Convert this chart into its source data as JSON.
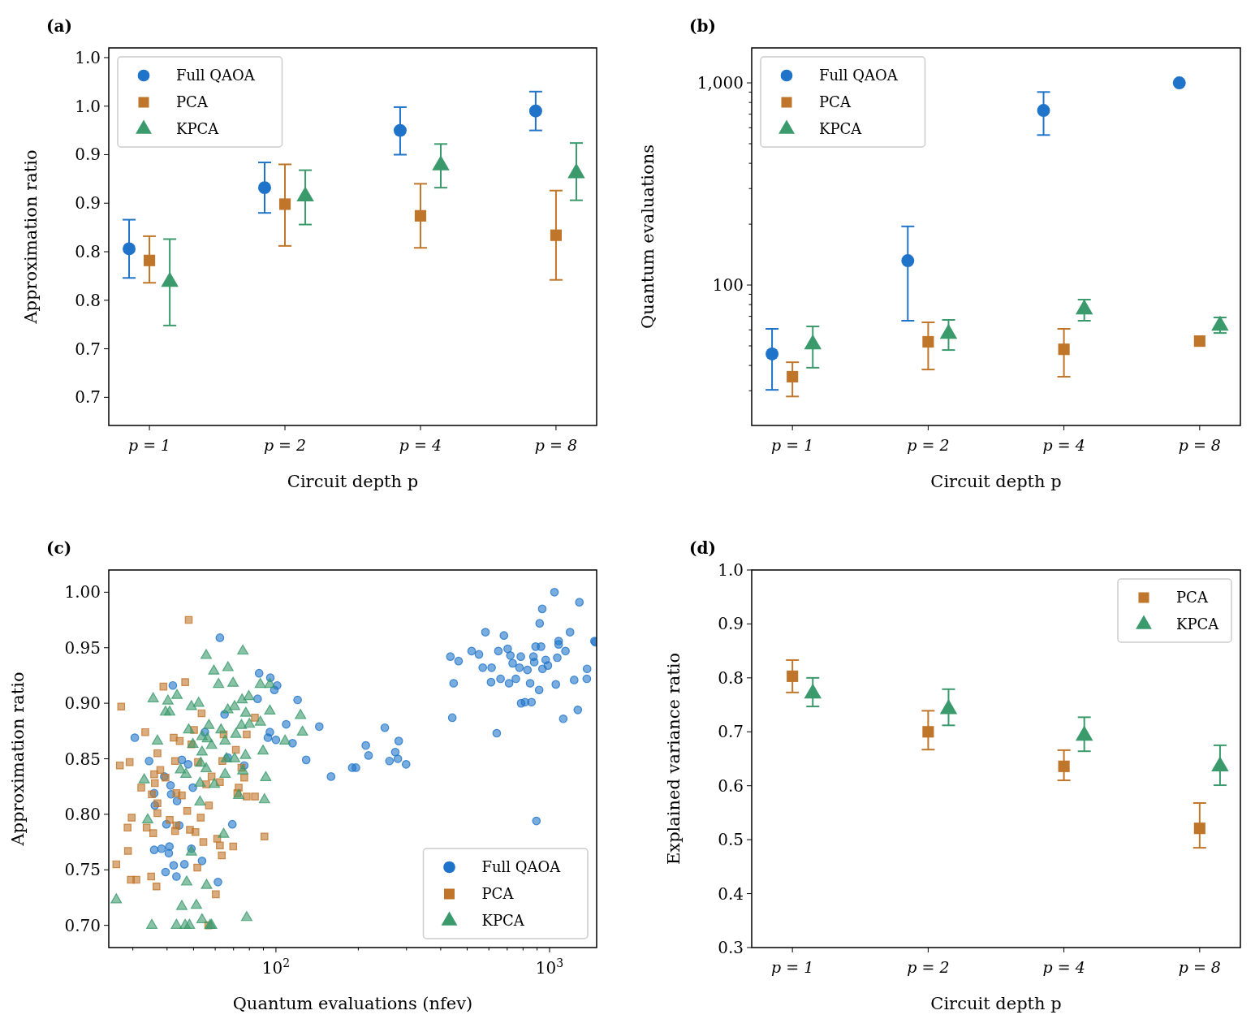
{
  "chart_data": [
    {
      "type": "scatter",
      "title": "(a)",
      "xlabel": "Circuit depth p",
      "ylabel": "Approximation ratio",
      "categories": [
        "p = 1",
        "p = 2",
        "p = 4",
        "p = 8"
      ],
      "ylim": [
        0.646,
        1.035
      ],
      "yticks": [
        {
          "value": 0.675,
          "label": "0.7"
        },
        {
          "value": 0.725,
          "label": "0.7"
        },
        {
          "value": 0.775,
          "label": "0.8"
        },
        {
          "value": 0.825,
          "label": "0.8"
        },
        {
          "value": 0.875,
          "label": "0.9"
        },
        {
          "value": 0.925,
          "label": "0.9"
        },
        {
          "value": 0.975,
          "label": "1.0"
        },
        {
          "value": 1.025,
          "label": "1.0"
        }
      ],
      "legend": "top left",
      "series": [
        {
          "name": "Full QAOA",
          "color": "#1f74c9",
          "marker": "circle",
          "values": [
            0.828,
            0.891,
            0.95,
            0.97
          ],
          "errors": [
            [
              0.798,
              0.858
            ],
            [
              0.865,
              0.917
            ],
            [
              0.925,
              0.974
            ],
            [
              0.95,
              0.99
            ]
          ]
        },
        {
          "name": "PCA",
          "color": "#c0762a",
          "marker": "square",
          "values": [
            0.816,
            0.874,
            0.862,
            0.842
          ],
          "errors": [
            [
              0.793,
              0.841
            ],
            [
              0.831,
              0.915
            ],
            [
              0.829,
              0.895
            ],
            [
              0.796,
              0.888
            ]
          ]
        },
        {
          "name": "KPCA",
          "color": "#3a9a6c",
          "marker": "triangle",
          "values": [
            0.794,
            0.882,
            0.914,
            0.906
          ],
          "errors": [
            [
              0.749,
              0.838
            ],
            [
              0.853,
              0.909
            ],
            [
              0.891,
              0.936
            ],
            [
              0.878,
              0.937
            ]
          ]
        }
      ]
    },
    {
      "type": "scatter",
      "title": "(b)",
      "xlabel": "Circuit depth p",
      "ylabel": "Quantum evaluations",
      "categories": [
        "p = 1",
        "p = 2",
        "p = 4",
        "p = 8"
      ],
      "log": "y",
      "ylim": [
        20.2,
        1489
      ],
      "yticks": [
        {
          "value": 30,
          "label": null
        },
        {
          "value": 40,
          "label": null
        },
        {
          "value": 50,
          "label": null
        },
        {
          "value": 60,
          "label": null
        },
        {
          "value": 70,
          "label": null
        },
        {
          "value": 80,
          "label": null
        },
        {
          "value": 90,
          "label": null
        },
        100,
        {
          "value": 200,
          "label": null
        },
        {
          "value": 300,
          "label": null
        },
        {
          "value": 400,
          "label": null
        },
        {
          "value": 500,
          "label": null
        },
        {
          "value": 600,
          "label": null
        },
        {
          "value": 700,
          "label": null
        },
        {
          "value": 800,
          "label": null
        },
        {
          "value": 900,
          "label": null
        },
        {
          "value": 1000,
          "label": "1,000"
        }
      ],
      "legend": "top left",
      "series": [
        {
          "name": "Full QAOA",
          "color": "#1f74c9",
          "marker": "circle",
          "values": [
            45.6,
            132,
            730,
            1000
          ],
          "errors": [
            [
              30.3,
              60.7
            ],
            [
              66.6,
              195
            ],
            [
              552,
              901
            ],
            null
          ]
        },
        {
          "name": "PCA",
          "color": "#c0762a",
          "marker": "square",
          "values": [
            35.2,
            52.4,
            48.1,
            52.8
          ],
          "errors": [
            [
              28.1,
              41.5
            ],
            [
              38.2,
              65.4
            ],
            [
              35.2,
              60.7
            ],
            null
          ]
        },
        {
          "name": "KPCA",
          "color": "#3a9a6c",
          "marker": "triangle",
          "values": [
            50.9,
            57.4,
            75.8,
            63
          ],
          "errors": [
            [
              39,
              62.4
            ],
            [
              47.7,
              67.2
            ],
            [
              66.6,
              84.7
            ],
            [
              57.9,
              69.1
            ]
          ]
        }
      ]
    },
    {
      "type": "scatter",
      "title": "(c)",
      "xlabel": "Quantum evaluations (nfev)",
      "ylabel": "Approximation ratio",
      "log": "x",
      "xlim": [
        24.5,
        1486
      ],
      "xticks": [
        {
          "value": 30,
          "label": null
        },
        {
          "value": 40,
          "label": null
        },
        {
          "value": 50,
          "label": null
        },
        {
          "value": 60,
          "label": null
        },
        {
          "value": 70,
          "label": null
        },
        {
          "value": 80,
          "label": null
        },
        {
          "value": 90,
          "label": null
        },
        {
          "value": 100,
          "label": "10$^{2}$"
        },
        {
          "value": 200,
          "label": null
        },
        {
          "value": 300,
          "label": null
        },
        {
          "value": 400,
          "label": null
        },
        {
          "value": 500,
          "label": null
        },
        {
          "value": 600,
          "label": null
        },
        {
          "value": 700,
          "label": null
        },
        {
          "value": 800,
          "label": null
        },
        {
          "value": 900,
          "label": null
        },
        {
          "value": 1000,
          "label": "10$^{3}$"
        }
      ],
      "ylim": [
        0.68,
        1.02
      ],
      "yticks": [
        {
          "value": 0.7,
          "label": "0.70"
        },
        0.75,
        {
          "value": 0.8,
          "label": "0.80"
        },
        0.85,
        {
          "value": 0.9,
          "label": "0.90"
        },
        0.95,
        {
          "value": 1.0,
          "label": "1.00"
        }
      ],
      "legend": "bottom right",
      "series": [
        {
          "name": "Full QAOA",
          "color": "#1f74c9",
          "marker": "circle",
          "x": [
            1042,
            1285,
            940,
            920,
            583,
            1188,
            681,
            1459,
            1079,
            1079,
            434,
            465,
            519,
            552,
            650,
            703,
            719,
            785,
            889,
            931,
            1143,
            873,
            879,
            968,
            1067,
            570,
            614,
            733,
            776,
            830,
            942,
            986,
            1371,
            1368,
            446,
            611,
            662,
            711,
            753,
            849,
            916,
            1054,
            1230,
            787,
            813,
            859,
            1122,
            1268,
            441,
            641,
            250,
            213,
            218,
            196,
            281,
            273,
            260,
            279,
            299,
            895,
            1470,
            62.4,
            86.8,
            95.4,
            101,
            98.7,
            85.7,
            120,
            42,
            64.9,
            109,
            144,
            95,
            93.5,
            100,
            115,
            129,
            159,
            190,
            30.5,
            34.4,
            55,
            45.3,
            47.8,
            66.7,
            76.6,
            39.1,
            41.2,
            49.7,
            41.4,
            43.5,
            36.1,
            35.9,
            39.8,
            44.3,
            69.3,
            35.9,
            38.2,
            40.8,
            40.6,
            49.1,
            53.7,
            39.5,
            42.3,
            43.3,
            46.3,
            61.4
          ],
          "values": [
            1.0,
            0.991,
            0.985,
            0.972,
            0.964,
            0.964,
            0.961,
            0.956,
            0.956,
            0.953,
            0.942,
            0.938,
            0.947,
            0.944,
            0.947,
            0.949,
            0.943,
            0.942,
            0.951,
            0.951,
            0.947,
            0.942,
            0.937,
            0.939,
            0.941,
            0.932,
            0.932,
            0.936,
            0.932,
            0.93,
            0.931,
            0.934,
            0.931,
            0.922,
            0.918,
            0.919,
            0.922,
            0.918,
            0.922,
            0.918,
            0.912,
            0.917,
            0.921,
            0.9,
            0.901,
            0.901,
            0.886,
            0.894,
            0.887,
            0.873,
            0.878,
            0.862,
            0.853,
            0.842,
            0.866,
            0.856,
            0.848,
            0.85,
            0.845,
            0.794,
            0.955,
            0.959,
            0.927,
            0.923,
            0.916,
            0.912,
            0.904,
            0.903,
            0.916,
            0.89,
            0.881,
            0.879,
            0.874,
            0.869,
            0.867,
            0.864,
            0.849,
            0.834,
            0.842,
            0.869,
            0.848,
            0.874,
            0.849,
            0.845,
            0.851,
            0.844,
            0.834,
            0.826,
            0.824,
            0.818,
            0.812,
            0.808,
            0.819,
            0.791,
            0.79,
            0.791,
            0.768,
            0.769,
            0.771,
            0.765,
            0.769,
            0.758,
            0.748,
            0.754,
            0.744,
            0.755,
            0.739
          ]
        },
        {
          "name": "PCA",
          "color": "#c0762a",
          "marker": "square",
          "x": [
            48,
            38.8,
            46.6,
            27.2,
            53.5,
            83.8,
            33.3,
            42.3,
            44.5,
            49.1,
            50.2,
            64.4,
            78.2,
            36.9,
            26.9,
            29.2,
            42.8,
            51.9,
            63.7,
            71.4,
            74.8,
            35.9,
            37.8,
            39.5,
            32.2,
            36.1,
            35.2,
            43.3,
            45.3,
            58.2,
            62.4,
            55.6,
            73.1,
            76.6,
            72.3,
            78.2,
            83.8,
            36.9,
            47.4,
            56.9,
            36.9,
            29.7,
            53.1,
            28.7,
            33.7,
            40.9,
            43.3,
            48.5,
            35.6,
            42.8,
            50.8,
            54.3,
            61,
            62.4,
            69.8,
            63.4,
            90.8,
            28.8,
            26.1,
            29.5,
            30.9,
            35,
            36.6,
            51.6,
            60.3,
            56.6
          ],
          "values": [
            0.975,
            0.915,
            0.919,
            0.897,
            0.891,
            0.887,
            0.874,
            0.869,
            0.866,
            0.863,
            0.876,
            0.872,
            0.872,
            0.855,
            0.844,
            0.847,
            0.848,
            0.847,
            0.848,
            0.858,
            0.842,
            0.836,
            0.84,
            0.833,
            0.824,
            0.828,
            0.818,
            0.819,
            0.817,
            0.834,
            0.829,
            0.827,
            0.824,
            0.833,
            0.819,
            0.816,
            0.816,
            0.81,
            0.803,
            0.808,
            0.801,
            0.797,
            0.797,
            0.788,
            0.788,
            0.795,
            0.79,
            0.786,
            0.783,
            0.785,
            0.784,
            0.775,
            0.778,
            0.772,
            0.771,
            0.763,
            0.78,
            0.767,
            0.755,
            0.741,
            0.741,
            0.744,
            0.735,
            0.752,
            0.728,
            0.7
          ]
        },
        {
          "name": "KPCA",
          "color": "#3a9a6c",
          "marker": "triangle",
          "x": [
            55.6,
            75.7,
            59.3,
            66.8,
            61.7,
            69.7,
            35.6,
            40.3,
            43.5,
            39.5,
            40.9,
            49.1,
            52.2,
            70.6,
            75.2,
            79.6,
            66.7,
            77.6,
            87.7,
            95,
            95,
            123,
            125,
            48,
            56.9,
            63,
            74.8,
            80,
            87.7,
            49.7,
            53.7,
            58.2,
            65.2,
            71.4,
            36.9,
            53.7,
            56.2,
            77.4,
            89.7,
            108,
            44.8,
            46.9,
            53.1,
            55.6,
            65.9,
            70.6,
            65.2,
            75.7,
            91.8,
            33,
            52.8,
            59.6,
            73.1,
            90.8,
            52.8,
            34,
            64.4,
            49.1,
            47.2,
            55.8,
            26.1,
            45.3,
            51.2,
            78.2,
            53.7,
            35.2,
            43.3,
            46.6,
            48.3,
            57.5,
            58.2
          ],
          "values": [
            0.943,
            0.947,
            0.929,
            0.932,
            0.917,
            0.918,
            0.904,
            0.902,
            0.907,
            0.892,
            0.892,
            0.897,
            0.9,
            0.897,
            0.903,
            0.906,
            0.894,
            0.891,
            0.917,
            0.917,
            0.893,
            0.889,
            0.874,
            0.876,
            0.88,
            0.876,
            0.88,
            0.881,
            0.883,
            0.863,
            0.87,
            0.862,
            0.866,
            0.872,
            0.866,
            0.856,
            0.868,
            0.853,
            0.857,
            0.866,
            0.84,
            0.836,
            0.846,
            0.841,
            0.85,
            0.85,
            0.836,
            0.839,
            0.833,
            0.831,
            0.828,
            0.827,
            0.817,
            0.813,
            0.811,
            0.795,
            0.782,
            0.766,
            0.739,
            0.736,
            0.723,
            0.717,
            0.718,
            0.707,
            0.705,
            0.7,
            0.7,
            0.7,
            0.7,
            0.7,
            0.7
          ]
        }
      ]
    },
    {
      "type": "scatter",
      "title": "(d)",
      "xlabel": "Circuit depth p",
      "ylabel": "Explained variance ratio",
      "categories": [
        "p = 1",
        "p = 2",
        "p = 4",
        "p = 8"
      ],
      "ylim": [
        0.3,
        1.0
      ],
      "yticks": [
        0.3,
        0.4,
        0.5,
        0.6,
        0.7,
        0.8,
        0.9,
        {
          "value": 1.0,
          "label": "1.0"
        }
      ],
      "legend": "top right",
      "series": [
        {
          "name": "PCA",
          "color": "#c0762a",
          "marker": "square",
          "values": [
            0.803,
            0.7,
            0.636,
            0.521
          ],
          "errors": [
            [
              0.773,
              0.833
            ],
            [
              0.667,
              0.739
            ],
            [
              0.61,
              0.666
            ],
            [
              0.485,
              0.568
            ]
          ]
        },
        {
          "name": "KPCA",
          "color": "#3a9a6c",
          "marker": "triangle",
          "values": [
            0.771,
            0.742,
            0.693,
            0.636
          ],
          "errors": [
            [
              0.747,
              0.8
            ],
            [
              0.712,
              0.779
            ],
            [
              0.664,
              0.727
            ],
            [
              0.601,
              0.675
            ]
          ]
        }
      ]
    }
  ]
}
